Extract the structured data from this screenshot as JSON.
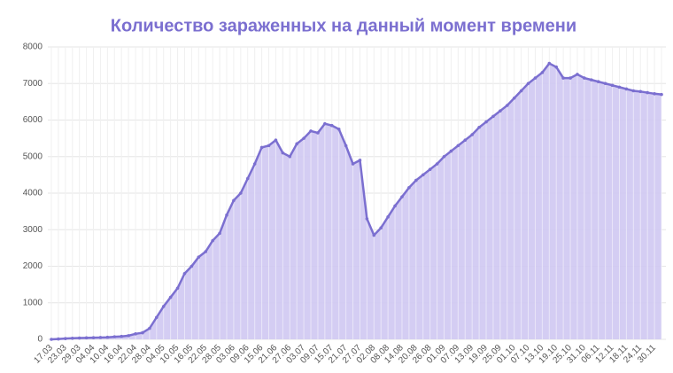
{
  "chart_data": {
    "type": "area",
    "title": "Количество зараженных на данный момент времени",
    "categories": [
      "17.03",
      null,
      "23.03",
      null,
      "29.03",
      null,
      "04.04",
      null,
      "10.04",
      null,
      "16.04",
      null,
      "22.04",
      null,
      "28.04",
      null,
      "04.05",
      null,
      "10.05",
      null,
      "16.05",
      null,
      "22.05",
      null,
      "28.05",
      null,
      "03.06",
      null,
      "09.06",
      null,
      "15.06",
      null,
      "21.06",
      null,
      "27.06",
      null,
      "03.07",
      null,
      "09.07",
      null,
      "15.07",
      null,
      "21.07",
      null,
      "27.07",
      null,
      "02.08",
      null,
      "08.08",
      null,
      "14.08",
      null,
      "20.08",
      null,
      "26.08",
      null,
      "01.09",
      null,
      "07.09",
      null,
      "13.09",
      null,
      "19.09",
      null,
      "25.09",
      null,
      "01.10",
      null,
      "07.10",
      null,
      "13.10",
      null,
      "19.10",
      null,
      "25.10",
      null,
      "31.10",
      null,
      "06.11",
      null,
      "12.11",
      null,
      "18.11",
      null,
      "24.11",
      null,
      "30.11",
      null
    ],
    "values": [
      0,
      10,
      20,
      30,
      35,
      40,
      45,
      50,
      55,
      70,
      80,
      100,
      150,
      180,
      300,
      600,
      900,
      1150,
      1400,
      1800,
      2000,
      2250,
      2400,
      2700,
      2900,
      3400,
      3800,
      4000,
      4400,
      4800,
      5250,
      5300,
      5450,
      5100,
      5000,
      5350,
      5500,
      5700,
      5650,
      5900,
      5850,
      5750,
      5300,
      4800,
      4900,
      3300,
      2850,
      3050,
      3350,
      3650,
      3900,
      4150,
      4350,
      4500,
      4650,
      4800,
      5000,
      5150,
      5300,
      5450,
      5600,
      5800,
      5950,
      6100,
      6250,
      6400,
      6600,
      6800,
      7000,
      7150,
      7300,
      7550,
      7450,
      7150,
      7150,
      7250,
      7150,
      7100,
      7050,
      7000,
      6950,
      6900,
      6850,
      6800,
      6780,
      6750,
      6720,
      6700
    ],
    "color": "#7b6fd0",
    "fill": "#cfc8f2",
    "ylim": [
      0,
      8000
    ],
    "yticks": [
      0,
      1000,
      2000,
      3000,
      4000,
      5000,
      6000,
      7000,
      8000
    ],
    "grid": true
  }
}
